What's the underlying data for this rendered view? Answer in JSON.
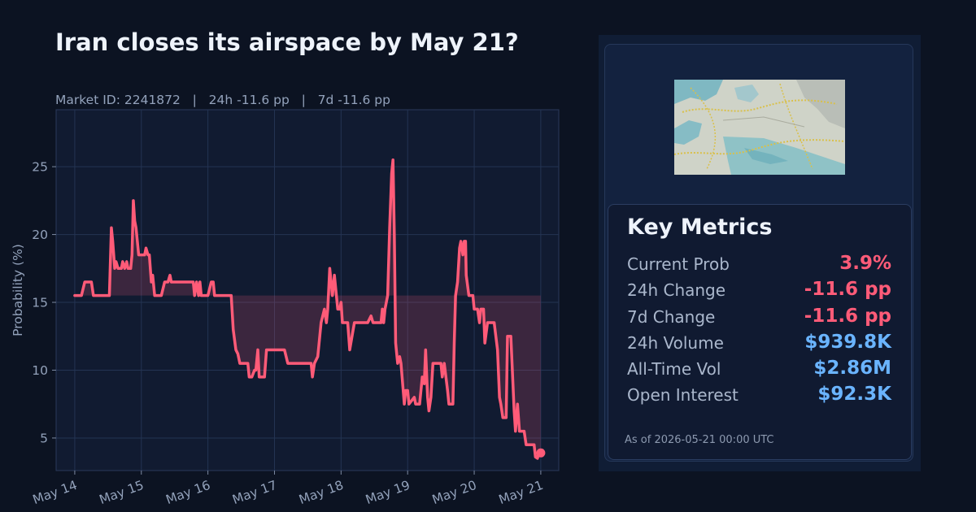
{
  "header": {
    "title": "Iran closes its airspace by May 21?",
    "subtitle": "Market ID: 2241872   |   24h -11.6 pp   |   7d -11.6 pp"
  },
  "panel": {
    "metrics_title": "Key Metrics",
    "metrics": [
      {
        "label": "Current Prob",
        "value": "3.9%",
        "tone": "negative"
      },
      {
        "label": "24h Change",
        "value": "-11.6 pp",
        "tone": "negative"
      },
      {
        "label": "7d Change",
        "value": "-11.6 pp",
        "tone": "negative"
      },
      {
        "label": "24h Volume",
        "value": "$939.8K",
        "tone": "positive"
      },
      {
        "label": "All-Time Vol",
        "value": "$2.86M",
        "tone": "positive"
      },
      {
        "label": "Open Interest",
        "value": "$92.3K",
        "tone": "positive"
      }
    ],
    "as_of": "As of 2026-05-21 00:00 UTC",
    "image": "map-thumbnail"
  },
  "colors": {
    "background": "#0c1322",
    "plot_background": "#111b31",
    "line": "#ff5b78",
    "negative": "#ff5b78",
    "positive": "#6ab4ff",
    "text_muted": "#93a2bb"
  },
  "chart_data": {
    "type": "line",
    "ylabel": "Probability (%)",
    "xlabel": "",
    "xticks": [
      "May 14",
      "May 15",
      "May 16",
      "May 17",
      "May 18",
      "May 19",
      "May 20",
      "May 21"
    ],
    "yticks": [
      5,
      10,
      15,
      20,
      25
    ],
    "xlim": [
      -0.28,
      7.27
    ],
    "ylim": [
      2.6,
      29.2
    ],
    "grid": true,
    "fill_reference": 15.5,
    "last_value": 3.9,
    "series": [
      {
        "points": [
          [
            0.0,
            15.5
          ],
          [
            0.1,
            15.5
          ],
          [
            0.15,
            16.5
          ],
          [
            0.2,
            16.5
          ],
          [
            0.25,
            16.5
          ],
          [
            0.28,
            15.5
          ],
          [
            0.5,
            15.5
          ],
          [
            0.52,
            15.5
          ],
          [
            0.55,
            20.5
          ],
          [
            0.57,
            19.5
          ],
          [
            0.6,
            17.5
          ],
          [
            0.62,
            18
          ],
          [
            0.65,
            17.5
          ],
          [
            0.7,
            17.5
          ],
          [
            0.72,
            18
          ],
          [
            0.75,
            17.5
          ],
          [
            0.78,
            18
          ],
          [
            0.8,
            17.5
          ],
          [
            0.84,
            17.5
          ],
          [
            0.86,
            18.5
          ],
          [
            0.88,
            22.5
          ],
          [
            0.9,
            21
          ],
          [
            0.92,
            20.5
          ],
          [
            0.94,
            19.5
          ],
          [
            0.96,
            18.5
          ],
          [
            1.0,
            18.5
          ],
          [
            1.05,
            18.5
          ],
          [
            1.07,
            19
          ],
          [
            1.1,
            18.5
          ],
          [
            1.12,
            18.5
          ],
          [
            1.15,
            16.5
          ],
          [
            1.17,
            17
          ],
          [
            1.2,
            15.5
          ],
          [
            1.3,
            15.5
          ],
          [
            1.35,
            16.5
          ],
          [
            1.4,
            16.5
          ],
          [
            1.43,
            17
          ],
          [
            1.45,
            16.5
          ],
          [
            1.5,
            16.5
          ],
          [
            1.65,
            16.5
          ],
          [
            1.78,
            16.5
          ],
          [
            1.8,
            15.5
          ],
          [
            1.83,
            16.5
          ],
          [
            1.86,
            15.5
          ],
          [
            1.88,
            16.5
          ],
          [
            1.9,
            15.5
          ],
          [
            2.0,
            15.5
          ],
          [
            2.05,
            16.5
          ],
          [
            2.08,
            16.5
          ],
          [
            2.1,
            15.5
          ],
          [
            2.3,
            15.5
          ],
          [
            2.35,
            15.5
          ],
          [
            2.38,
            13
          ],
          [
            2.42,
            11.5
          ],
          [
            2.45,
            11.2
          ],
          [
            2.48,
            10.5
          ],
          [
            2.6,
            10.5
          ],
          [
            2.62,
            9.5
          ],
          [
            2.66,
            9.5
          ],
          [
            2.7,
            10
          ],
          [
            2.72,
            10
          ],
          [
            2.75,
            11.5
          ],
          [
            2.77,
            9.5
          ],
          [
            2.85,
            9.5
          ],
          [
            2.88,
            11.5
          ],
          [
            3.0,
            11.5
          ],
          [
            3.15,
            11.5
          ],
          [
            3.2,
            10.5
          ],
          [
            3.4,
            10.5
          ],
          [
            3.5,
            10.5
          ],
          [
            3.55,
            10.5
          ],
          [
            3.57,
            9.5
          ],
          [
            3.6,
            10.5
          ],
          [
            3.65,
            11
          ],
          [
            3.7,
            13.5
          ],
          [
            3.75,
            14.5
          ],
          [
            3.78,
            13.5
          ],
          [
            3.8,
            14.5
          ],
          [
            3.83,
            17.5
          ],
          [
            3.85,
            16.5
          ],
          [
            3.87,
            15.5
          ],
          [
            3.9,
            17
          ],
          [
            3.92,
            16
          ],
          [
            3.95,
            14.5
          ],
          [
            3.98,
            14.5
          ],
          [
            4.0,
            15
          ],
          [
            4.02,
            13.5
          ],
          [
            4.1,
            13.5
          ],
          [
            4.13,
            11.5
          ],
          [
            4.2,
            13.5
          ],
          [
            4.4,
            13.5
          ],
          [
            4.45,
            14
          ],
          [
            4.48,
            13.5
          ],
          [
            4.6,
            13.5
          ],
          [
            4.62,
            14.5
          ],
          [
            4.64,
            13.5
          ],
          [
            4.66,
            14.5
          ],
          [
            4.7,
            15.5
          ],
          [
            4.73,
            20.5
          ],
          [
            4.76,
            24.5
          ],
          [
            4.78,
            25.5
          ],
          [
            4.8,
            20
          ],
          [
            4.82,
            12
          ],
          [
            4.85,
            10.5
          ],
          [
            4.88,
            11
          ],
          [
            4.9,
            10.5
          ],
          [
            4.95,
            7.5
          ],
          [
            4.97,
            8.5
          ],
          [
            5.0,
            8.5
          ],
          [
            5.02,
            7.5
          ],
          [
            5.1,
            8
          ],
          [
            5.12,
            7.5
          ],
          [
            5.18,
            7.5
          ],
          [
            5.22,
            9.5
          ],
          [
            5.25,
            9
          ],
          [
            5.27,
            11.5
          ],
          [
            5.3,
            8
          ],
          [
            5.32,
            7
          ],
          [
            5.35,
            8
          ],
          [
            5.38,
            10.5
          ],
          [
            5.4,
            10.5
          ],
          [
            5.5,
            10.5
          ],
          [
            5.52,
            9.5
          ],
          [
            5.55,
            10.5
          ],
          [
            5.6,
            8.5
          ],
          [
            5.62,
            7.5
          ],
          [
            5.68,
            7.5
          ],
          [
            5.7,
            12
          ],
          [
            5.72,
            15.5
          ],
          [
            5.75,
            16.5
          ],
          [
            5.78,
            19
          ],
          [
            5.8,
            19.5
          ],
          [
            5.83,
            18.5
          ],
          [
            5.85,
            19.5
          ],
          [
            5.87,
            19.5
          ],
          [
            5.88,
            17
          ],
          [
            5.92,
            15.5
          ],
          [
            5.98,
            15.5
          ],
          [
            6.0,
            14.5
          ],
          [
            6.05,
            14.5
          ],
          [
            6.08,
            13.5
          ],
          [
            6.1,
            14.5
          ],
          [
            6.14,
            14.5
          ],
          [
            6.16,
            12
          ],
          [
            6.2,
            13.5
          ],
          [
            6.3,
            13.5
          ],
          [
            6.35,
            11.5
          ],
          [
            6.38,
            8
          ],
          [
            6.4,
            7.5
          ],
          [
            6.43,
            6.5
          ],
          [
            6.48,
            6.5
          ],
          [
            6.5,
            12.5
          ],
          [
            6.55,
            12.5
          ],
          [
            6.6,
            7
          ],
          [
            6.62,
            5.5
          ],
          [
            6.65,
            7.5
          ],
          [
            6.68,
            5.5
          ],
          [
            6.75,
            5.5
          ],
          [
            6.78,
            4.5
          ],
          [
            6.9,
            4.5
          ],
          [
            6.92,
            3.6
          ],
          [
            6.95,
            3.5
          ],
          [
            6.97,
            3.9
          ],
          [
            7.0,
            3.9
          ]
        ]
      }
    ]
  }
}
